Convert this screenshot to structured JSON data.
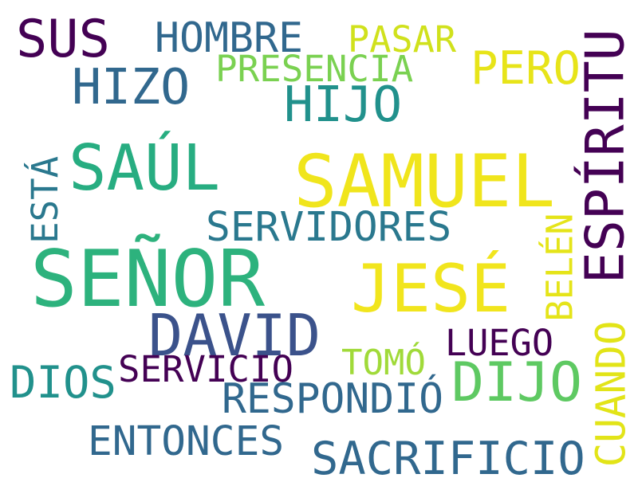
{
  "cloud": {
    "background": "#ffffff",
    "words": [
      {
        "text": "SUS",
        "color": "#440154",
        "rotated": false
      },
      {
        "text": "HOMBRE",
        "color": "#31688e",
        "rotated": false
      },
      {
        "text": "PASAR",
        "color": "#d0e11c",
        "rotated": false
      },
      {
        "text": "PRESENCIA",
        "color": "#7ad151",
        "rotated": false
      },
      {
        "text": "PERO",
        "color": "#e7e419",
        "rotated": false
      },
      {
        "text": "HIZO",
        "color": "#31688e",
        "rotated": false
      },
      {
        "text": "HIJO",
        "color": "#21918c",
        "rotated": false
      },
      {
        "text": "ESPÍRITU",
        "color": "#440154",
        "rotated": true
      },
      {
        "text": "SAÚL",
        "color": "#27ad81",
        "rotated": false
      },
      {
        "text": "SAMUEL",
        "color": "#f0e51c",
        "rotated": false
      },
      {
        "text": "ESTÁ",
        "color": "#2a788e",
        "rotated": true
      },
      {
        "text": "SERVIDORES",
        "color": "#2a788e",
        "rotated": false
      },
      {
        "text": "SEÑOR",
        "color": "#2db27d",
        "rotated": false
      },
      {
        "text": "JESÉ",
        "color": "#f1e51d",
        "rotated": false
      },
      {
        "text": "BELÉN",
        "color": "#e5e419",
        "rotated": true
      },
      {
        "text": "DAVID",
        "color": "#3b528b",
        "rotated": false
      },
      {
        "text": "LUEGO",
        "color": "#440154",
        "rotated": false
      },
      {
        "text": "TOMÓ",
        "color": "#a0da39",
        "rotated": false
      },
      {
        "text": "SERVICIO",
        "color": "#440154",
        "rotated": false
      },
      {
        "text": "DIOS",
        "color": "#21918c",
        "rotated": false
      },
      {
        "text": "DIJO",
        "color": "#5ec962",
        "rotated": false
      },
      {
        "text": "RESPONDIÓ",
        "color": "#31688e",
        "rotated": false
      },
      {
        "text": "CUANDO",
        "color": "#e2e418",
        "rotated": true
      },
      {
        "text": "ENTONCES",
        "color": "#31688e",
        "rotated": false
      },
      {
        "text": "SACRIFICIO",
        "color": "#31688e",
        "rotated": false
      }
    ]
  }
}
